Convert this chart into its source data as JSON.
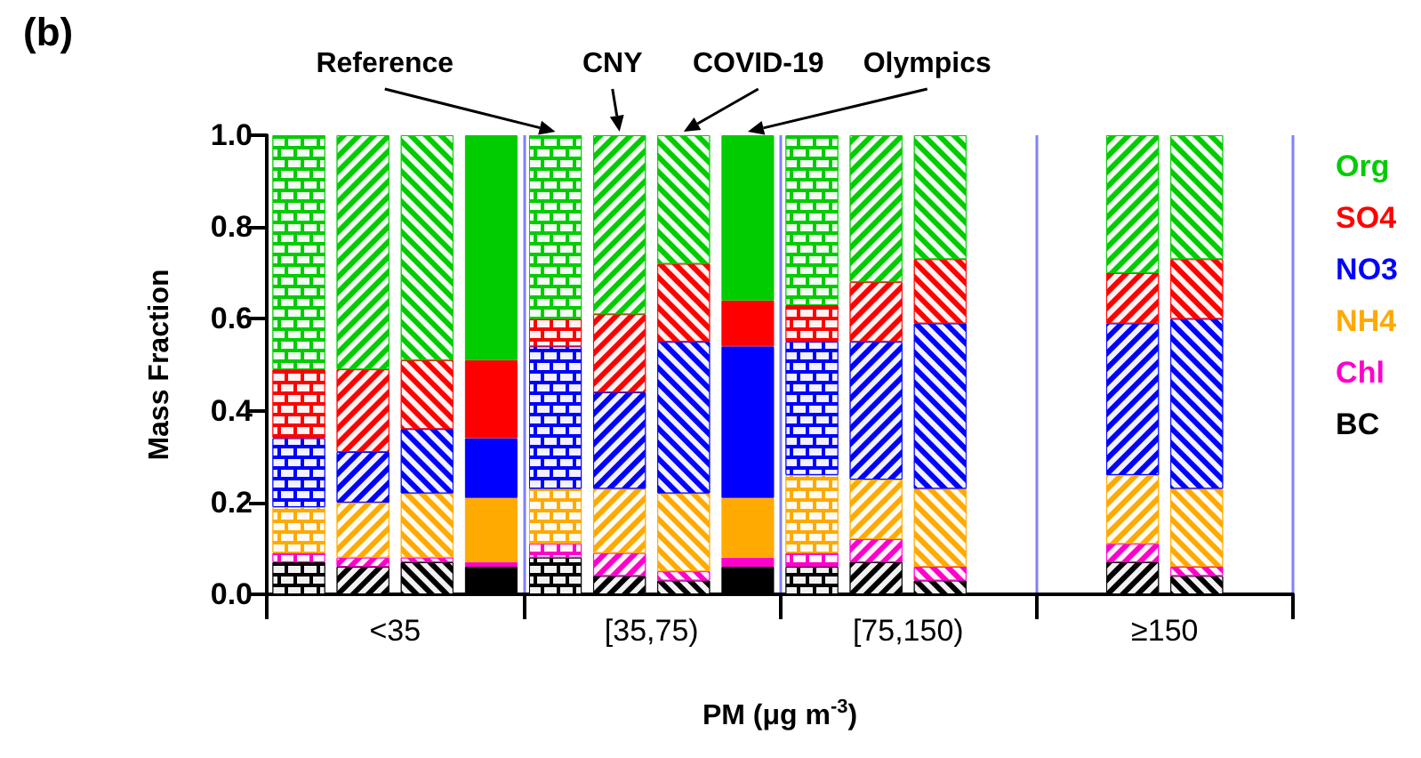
{
  "chart_data": {
    "type": "bar",
    "title": "(b)",
    "xlabel": "PM (μg m$^{-3}$)",
    "ylabel": "Mass Fraction",
    "stacked": true,
    "grid": "x",
    "legend": "right",
    "categories": [
      null,
      "<35",
      null,
      null,
      null,
      "[35,75)",
      null,
      null,
      null,
      "[75,150)",
      null,
      null,
      null,
      "≥150",
      null,
      null
    ],
    "ylim": [
      0,
      1
    ],
    "yticks": [
      {
        "value": 0,
        "label": "0.0"
      },
      {
        "value": 0.2,
        "label": "0.2"
      },
      {
        "value": 0.4,
        "label": "0.4"
      },
      {
        "value": 0.6,
        "label": "0.6"
      },
      {
        "value": 0.8,
        "label": "0.8"
      },
      {
        "value": 1,
        "label": "1.0"
      }
    ],
    "annotations": [
      "Reference",
      "CNY",
      "COVID-19",
      "Olympics"
    ],
    "series": [
      {
        "name": "BC",
        "color": "#000000",
        "values": [
          0.07,
          0.06,
          0.07,
          0.06,
          0.08,
          0.04,
          0.03,
          0.06,
          0.06,
          0.07,
          0.03,
          null,
          null,
          0.07,
          0.04,
          null
        ]
      },
      {
        "name": "Chl",
        "color": "#ff00cc",
        "values": [
          0.02,
          0.02,
          0.01,
          0.01,
          0.03,
          0.05,
          0.02,
          0.02,
          0.03,
          0.05,
          0.03,
          null,
          null,
          0.04,
          0.02,
          null
        ]
      },
      {
        "name": "NH4",
        "color": "#ffaa00",
        "values": [
          0.1,
          0.12,
          0.14,
          0.14,
          0.12,
          0.14,
          0.17,
          0.13,
          0.17,
          0.13,
          0.17,
          null,
          null,
          0.15,
          0.17,
          null
        ]
      },
      {
        "name": "NO3",
        "color": "#0000ff",
        "values": [
          0.15,
          0.11,
          0.14,
          0.13,
          0.31,
          0.21,
          0.33,
          0.33,
          0.29,
          0.3,
          0.36,
          null,
          null,
          0.33,
          0.37,
          null
        ]
      },
      {
        "name": "SO4",
        "color": "#ff0000",
        "values": [
          0.15,
          0.18,
          0.15,
          0.17,
          0.06,
          0.17,
          0.17,
          0.1,
          0.08,
          0.13,
          0.14,
          null,
          null,
          0.11,
          0.13,
          null
        ]
      },
      {
        "name": "Org",
        "color": "#00cc00",
        "values": [
          0.51,
          0.51,
          0.49,
          0.49,
          0.4,
          0.39,
          0.28,
          0.36,
          0.37,
          0.32,
          0.27,
          null,
          null,
          0.3,
          0.27,
          null
        ]
      }
    ]
  }
}
